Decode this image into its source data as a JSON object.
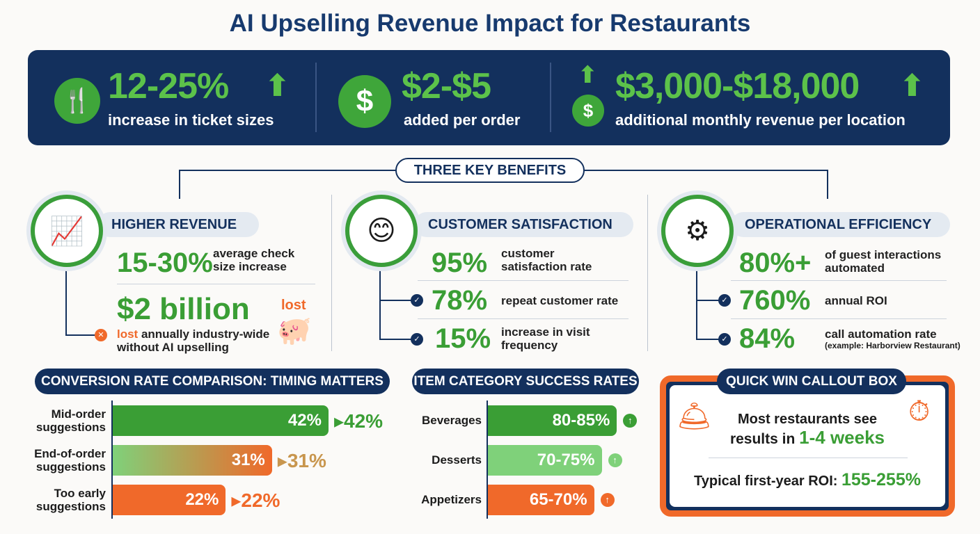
{
  "title": "AI Upselling Revenue Impact for Restaurants",
  "banner": [
    {
      "value": "12-25%",
      "label": "increase in ticket sizes",
      "icon": "fork-knife-icon"
    },
    {
      "value": "$2-$5",
      "label": "added per order",
      "icon": "dollar-icon"
    },
    {
      "value": "$3,000-$18,000",
      "label": "additional monthly revenue per location",
      "icon": "money-up-icon"
    }
  ],
  "benefits_title": "THREE KEY BENEFITS",
  "columns": [
    {
      "heading": "HIGHER REVENUE",
      "icon": "growth-chart-icon",
      "stats": [
        {
          "value": "15-30%",
          "text": "average check size increase"
        },
        {
          "value": "$2 billion",
          "tag": "lost",
          "text_lead": "lost",
          "text": " annually industry-wide",
          "text2": "without AI upselling"
        }
      ]
    },
    {
      "heading": "CUSTOMER SATISFACTION",
      "icon": "happy-customer-icon",
      "stats": [
        {
          "value": "95%",
          "text": "customer satisfaction rate"
        },
        {
          "value": "78%",
          "text": "repeat customer rate"
        },
        {
          "value": "15%",
          "text": "increase in visit frequency"
        }
      ]
    },
    {
      "heading": "OPERATIONAL EFFICIENCY",
      "icon": "robot-arm-icon",
      "stats": [
        {
          "value": "80%+",
          "text": "of guest interactions automated"
        },
        {
          "value": "760%",
          "text": "annual ROI"
        },
        {
          "value": "84%",
          "text": "call automation rate",
          "note": "(example: Harborview Restaurant)"
        }
      ]
    }
  ],
  "quick_win": {
    "title": "QUICK WIN CALLOUT BOX",
    "line1": "Most restaurants see",
    "line2_pre": "results in ",
    "line2_hl": "1-4 weeks",
    "roi_pre": "Typical first-year ROI: ",
    "roi_hl": "155-255%"
  },
  "colors": {
    "navy": "#13305d",
    "green": "#3a9e35",
    "light_green": "#7fd17a",
    "orange": "#f0692a"
  },
  "chart_data": [
    {
      "type": "bar",
      "title": "CONVERSION RATE COMPARISON: TIMING MATTERS",
      "categories": [
        "Mid-order suggestions",
        "End-of-order suggestions",
        "Too early suggestions"
      ],
      "values": [
        42,
        31,
        22
      ],
      "labels": [
        "42%",
        "31%",
        "22%"
      ],
      "colors": [
        "#3a9e35",
        "#f0692a",
        "#f0692a"
      ]
    },
    {
      "type": "bar",
      "title": "ITEM CATEGORY SUCCESS RATES",
      "categories": [
        "Beverages",
        "Desserts",
        "Appetizers"
      ],
      "ranges": [
        [
          80,
          85
        ],
        [
          70,
          75
        ],
        [
          65,
          70
        ]
      ],
      "labels": [
        "80-85%",
        "70-75%",
        "65-70%"
      ],
      "colors": [
        "#3a9e35",
        "#7fd17a",
        "#f0692a"
      ]
    }
  ]
}
